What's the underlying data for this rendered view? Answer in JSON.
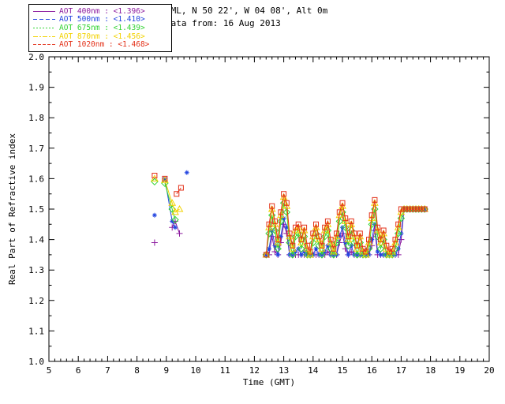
{
  "header": {
    "line1": "PML, N 50 22', W 04 08', Alt 0m",
    "line2": "Data from: 16 Aug 2013"
  },
  "chart_data": {
    "type": "line",
    "title": "",
    "xlabel": "Time (GMT)",
    "ylabel": "Real Part of Refractive index",
    "xlim": [
      5,
      20
    ],
    "ylim": [
      1.0,
      2.0
    ],
    "xtick_step": 1,
    "ytick_step": 0.1,
    "grid": false,
    "legend_position": "top-left",
    "afternoon_x0": 12.4,
    "afternoon_dx": 0.1,
    "series": [
      {
        "key": "400nm",
        "label": "AOT  400nm",
        "value": "<1.396>",
        "color": "#8b1a9e",
        "marker": "plus",
        "dash": "",
        "morning": [
          [
            8.6,
            1.39
          ],
          [
            9.2,
            1.44
          ],
          [
            9.3,
            1.46
          ],
          [
            9.45,
            1.42
          ]
        ],
        "afternoon_y": [
          1.35,
          1.35,
          1.41,
          1.36,
          1.35,
          1.39,
          1.45,
          1.42,
          1.35,
          1.35,
          1.35,
          1.35,
          1.35,
          1.35,
          1.35,
          1.35,
          1.35,
          1.35,
          1.35,
          1.35,
          1.35,
          1.36,
          1.35,
          1.35,
          1.35,
          1.39,
          1.42,
          1.37,
          1.35,
          1.36,
          1.35,
          1.35,
          1.35,
          1.35,
          1.35,
          1.35,
          1.38,
          1.43,
          1.35,
          1.35,
          1.35,
          1.35,
          1.35,
          1.35,
          1.35,
          1.35,
          1.4,
          1.5,
          1.5,
          1.5,
          1.5,
          1.5,
          1.5,
          1.5,
          1.5
        ]
      },
      {
        "key": "500nm",
        "label": "AOT  500nm",
        "value": "<1.410>",
        "color": "#2244e0",
        "marker": "asterisk",
        "dash": "5,3",
        "morning": [
          [
            8.6,
            1.48
          ],
          [
            8.95,
            1.6
          ],
          [
            9.2,
            1.46
          ],
          [
            9.3,
            1.44
          ],
          [
            9.7,
            1.62
          ]
        ],
        "afternoon_y": [
          1.35,
          1.37,
          1.43,
          1.38,
          1.35,
          1.41,
          1.47,
          1.44,
          1.35,
          1.35,
          1.36,
          1.37,
          1.35,
          1.36,
          1.35,
          1.35,
          1.35,
          1.37,
          1.35,
          1.35,
          1.36,
          1.38,
          1.35,
          1.35,
          1.35,
          1.41,
          1.44,
          1.39,
          1.35,
          1.38,
          1.35,
          1.35,
          1.35,
          1.35,
          1.35,
          1.35,
          1.4,
          1.45,
          1.36,
          1.35,
          1.35,
          1.35,
          1.35,
          1.35,
          1.35,
          1.37,
          1.42,
          1.5,
          1.5,
          1.5,
          1.5,
          1.5,
          1.5,
          1.5,
          1.5
        ]
      },
      {
        "key": "675nm",
        "label": "AOT  675nm",
        "value": "<1.439>",
        "color": "#33d433",
        "marker": "diamond",
        "dash": "2,2",
        "morning": [
          [
            8.6,
            1.59
          ],
          [
            8.95,
            1.585
          ],
          [
            9.2,
            1.5
          ],
          [
            9.3,
            1.465
          ]
        ],
        "afternoon_y": [
          1.35,
          1.42,
          1.48,
          1.43,
          1.37,
          1.46,
          1.52,
          1.49,
          1.39,
          1.35,
          1.41,
          1.42,
          1.37,
          1.41,
          1.35,
          1.35,
          1.39,
          1.42,
          1.38,
          1.35,
          1.41,
          1.43,
          1.37,
          1.35,
          1.39,
          1.46,
          1.49,
          1.44,
          1.38,
          1.43,
          1.39,
          1.35,
          1.39,
          1.35,
          1.35,
          1.37,
          1.45,
          1.5,
          1.41,
          1.37,
          1.4,
          1.35,
          1.35,
          1.35,
          1.37,
          1.42,
          1.47,
          1.5,
          1.5,
          1.5,
          1.5,
          1.5,
          1.5,
          1.5,
          1.5
        ]
      },
      {
        "key": "870nm",
        "label": "AOT  870nm",
        "value": "<1.456>",
        "color": "#f2d200",
        "marker": "triangle",
        "dash": "6,2,2,2",
        "morning": [
          [
            8.6,
            1.6
          ],
          [
            8.95,
            1.595
          ],
          [
            9.2,
            1.52
          ],
          [
            9.3,
            1.49
          ],
          [
            9.45,
            1.5
          ]
        ],
        "afternoon_y": [
          1.35,
          1.44,
          1.5,
          1.45,
          1.39,
          1.48,
          1.54,
          1.51,
          1.41,
          1.37,
          1.43,
          1.44,
          1.39,
          1.43,
          1.37,
          1.35,
          1.41,
          1.44,
          1.4,
          1.37,
          1.43,
          1.45,
          1.39,
          1.36,
          1.41,
          1.48,
          1.51,
          1.46,
          1.4,
          1.45,
          1.41,
          1.37,
          1.41,
          1.36,
          1.35,
          1.39,
          1.47,
          1.52,
          1.43,
          1.39,
          1.42,
          1.37,
          1.35,
          1.36,
          1.39,
          1.44,
          1.49,
          1.5,
          1.5,
          1.5,
          1.5,
          1.5,
          1.5,
          1.5,
          1.5
        ]
      },
      {
        "key": "1020nm",
        "label": "AOT 1020nm",
        "value": "<1.468>",
        "color": "#e33119",
        "marker": "square",
        "dash": "4,2",
        "morning": [
          [
            8.6,
            1.61
          ],
          [
            8.95,
            1.6
          ],
          [
            9.35,
            1.55
          ],
          [
            9.5,
            1.57
          ]
        ],
        "afternoon_y": [
          1.35,
          1.45,
          1.51,
          1.46,
          1.4,
          1.49,
          1.55,
          1.52,
          1.42,
          1.38,
          1.44,
          1.45,
          1.4,
          1.44,
          1.38,
          1.36,
          1.42,
          1.45,
          1.41,
          1.38,
          1.44,
          1.46,
          1.4,
          1.37,
          1.42,
          1.49,
          1.52,
          1.47,
          1.41,
          1.46,
          1.42,
          1.38,
          1.42,
          1.37,
          1.36,
          1.4,
          1.48,
          1.53,
          1.44,
          1.4,
          1.43,
          1.38,
          1.36,
          1.37,
          1.4,
          1.45,
          1.5,
          1.5,
          1.5,
          1.5,
          1.5,
          1.5,
          1.5,
          1.5,
          1.5
        ]
      }
    ]
  }
}
